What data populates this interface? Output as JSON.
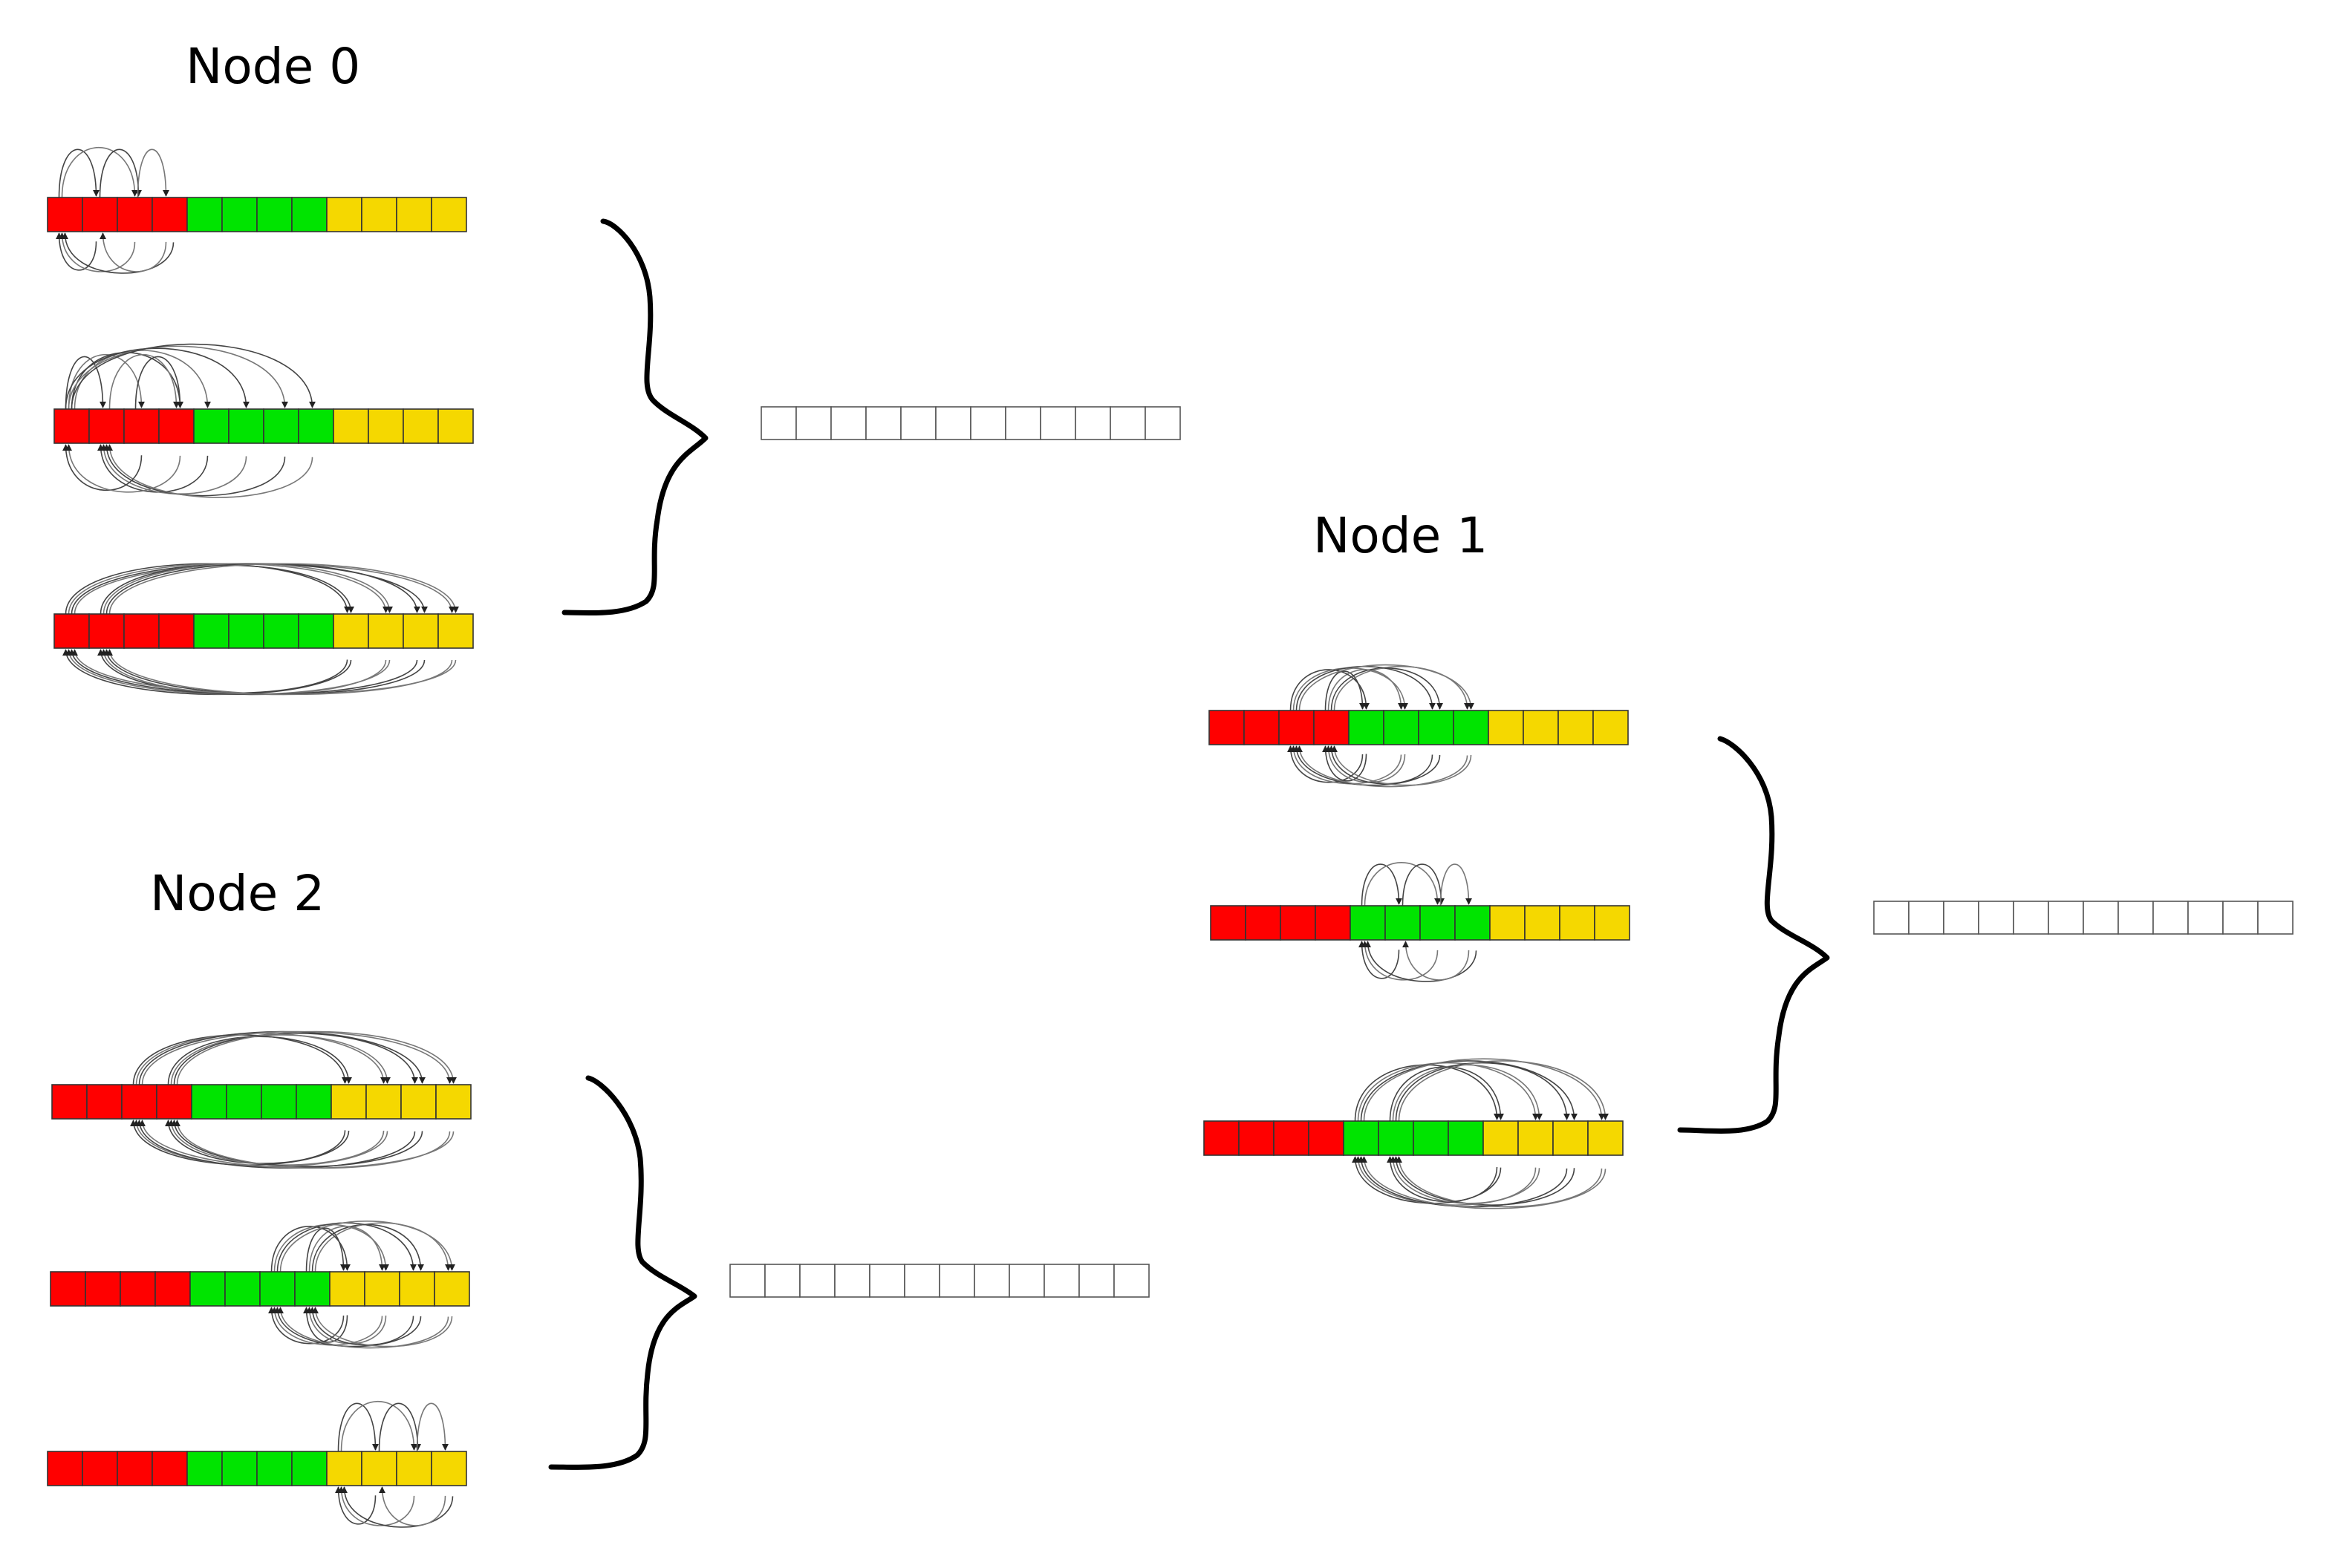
{
  "colors": {
    "red": "#ff0000",
    "green": "#00e400",
    "yellow": "#f5d800",
    "empty": "#ffffff"
  },
  "nodes": [
    {
      "title": "Node 0",
      "bars": [
        {
          "colors": [
            "red",
            "red",
            "red",
            "red",
            "green",
            "green",
            "green",
            "green",
            "yellow",
            "yellow",
            "yellow",
            "yellow"
          ],
          "top_arcs": [
            [
              1,
              2
            ],
            [
              1,
              3
            ],
            [
              2,
              3
            ],
            [
              3,
              4
            ]
          ],
          "bottom_arcs": [
            [
              1,
              2
            ],
            [
              1,
              3
            ],
            [
              1,
              4
            ],
            [
              2,
              4
            ]
          ]
        },
        {
          "colors": [
            "red",
            "red",
            "red",
            "red",
            "green",
            "green",
            "green",
            "green",
            "yellow",
            "yellow",
            "yellow",
            "yellow"
          ],
          "top_arcs": [
            [
              1,
              2
            ],
            [
              1,
              3
            ],
            [
              1,
              4
            ],
            [
              1,
              5
            ],
            [
              1,
              6
            ],
            [
              1,
              7
            ],
            [
              1,
              8
            ],
            [
              2,
              4
            ],
            [
              3,
              4
            ]
          ],
          "bottom_arcs": [
            [
              2,
              5
            ],
            [
              2,
              6
            ],
            [
              2,
              7
            ],
            [
              2,
              8
            ],
            [
              1,
              3
            ],
            [
              1,
              4
            ]
          ]
        },
        {
          "colors": [
            "red",
            "red",
            "red",
            "red",
            "green",
            "green",
            "green",
            "green",
            "yellow",
            "yellow",
            "yellow",
            "yellow"
          ],
          "top_arcs": [
            [
              1,
              9
            ],
            [
              1,
              10
            ],
            [
              1,
              11
            ],
            [
              1,
              12
            ],
            [
              2,
              9
            ],
            [
              2,
              10
            ],
            [
              2,
              11
            ],
            [
              2,
              12
            ]
          ],
          "bottom_arcs": [
            [
              2,
              9
            ],
            [
              2,
              10
            ],
            [
              2,
              11
            ],
            [
              2,
              12
            ],
            [
              1,
              9
            ],
            [
              1,
              10
            ],
            [
              1,
              11
            ],
            [
              1,
              12
            ]
          ]
        }
      ],
      "result_cells": 12
    },
    {
      "title": "Node 1",
      "bars": [
        {
          "colors": [
            "red",
            "red",
            "red",
            "red",
            "green",
            "green",
            "green",
            "green",
            "yellow",
            "yellow",
            "yellow",
            "yellow"
          ],
          "top_arcs": [
            [
              4,
              5
            ],
            [
              4,
              6
            ],
            [
              4,
              7
            ],
            [
              4,
              8
            ],
            [
              3,
              5
            ],
            [
              3,
              6
            ],
            [
              3,
              7
            ],
            [
              3,
              8
            ]
          ],
          "bottom_arcs": [
            [
              3,
              5
            ],
            [
              3,
              6
            ],
            [
              3,
              7
            ],
            [
              3,
              8
            ],
            [
              4,
              5
            ],
            [
              4,
              6
            ],
            [
              4,
              7
            ],
            [
              4,
              8
            ]
          ]
        },
        {
          "colors": [
            "red",
            "red",
            "red",
            "red",
            "green",
            "green",
            "green",
            "green",
            "yellow",
            "yellow",
            "yellow",
            "yellow"
          ],
          "top_arcs": [
            [
              5,
              6
            ],
            [
              5,
              7
            ],
            [
              6,
              7
            ],
            [
              7,
              8
            ]
          ],
          "bottom_arcs": [
            [
              5,
              6
            ],
            [
              5,
              7
            ],
            [
              5,
              8
            ],
            [
              6,
              8
            ]
          ]
        },
        {
          "colors": [
            "red",
            "red",
            "red",
            "red",
            "green",
            "green",
            "green",
            "green",
            "yellow",
            "yellow",
            "yellow",
            "yellow"
          ],
          "top_arcs": [
            [
              5,
              9
            ],
            [
              5,
              10
            ],
            [
              5,
              11
            ],
            [
              5,
              12
            ],
            [
              6,
              9
            ],
            [
              6,
              10
            ],
            [
              6,
              11
            ],
            [
              6,
              12
            ]
          ],
          "bottom_arcs": [
            [
              6,
              9
            ],
            [
              6,
              10
            ],
            [
              6,
              11
            ],
            [
              6,
              12
            ],
            [
              5,
              9
            ],
            [
              5,
              10
            ],
            [
              5,
              11
            ],
            [
              5,
              12
            ]
          ]
        }
      ],
      "result_cells": 12
    },
    {
      "title": "Node 2",
      "bars": [
        {
          "colors": [
            "red",
            "red",
            "red",
            "red",
            "green",
            "green",
            "green",
            "green",
            "yellow",
            "yellow",
            "yellow",
            "yellow"
          ],
          "top_arcs": [
            [
              3,
              9
            ],
            [
              3,
              10
            ],
            [
              3,
              11
            ],
            [
              3,
              12
            ],
            [
              4,
              9
            ],
            [
              4,
              10
            ],
            [
              4,
              11
            ],
            [
              4,
              12
            ]
          ],
          "bottom_arcs": [
            [
              4,
              9
            ],
            [
              4,
              10
            ],
            [
              4,
              11
            ],
            [
              4,
              12
            ],
            [
              3,
              9
            ],
            [
              3,
              10
            ],
            [
              3,
              11
            ],
            [
              3,
              12
            ]
          ]
        },
        {
          "colors": [
            "red",
            "red",
            "red",
            "red",
            "green",
            "green",
            "green",
            "green",
            "yellow",
            "yellow",
            "yellow",
            "yellow"
          ],
          "top_arcs": [
            [
              8,
              9
            ],
            [
              8,
              10
            ],
            [
              8,
              11
            ],
            [
              8,
              12
            ],
            [
              7,
              9
            ],
            [
              7,
              10
            ],
            [
              7,
              11
            ],
            [
              7,
              12
            ]
          ],
          "bottom_arcs": [
            [
              7,
              9
            ],
            [
              7,
              10
            ],
            [
              7,
              11
            ],
            [
              7,
              12
            ],
            [
              8,
              9
            ],
            [
              8,
              10
            ],
            [
              8,
              11
            ],
            [
              8,
              12
            ]
          ]
        },
        {
          "colors": [
            "red",
            "red",
            "red",
            "red",
            "green",
            "green",
            "green",
            "green",
            "yellow",
            "yellow",
            "yellow",
            "yellow"
          ],
          "top_arcs": [
            [
              9,
              10
            ],
            [
              9,
              11
            ],
            [
              10,
              11
            ],
            [
              11,
              12
            ]
          ],
          "bottom_arcs": [
            [
              9,
              10
            ],
            [
              9,
              11
            ],
            [
              9,
              12
            ],
            [
              10,
              12
            ]
          ]
        }
      ],
      "result_cells": 12
    }
  ]
}
